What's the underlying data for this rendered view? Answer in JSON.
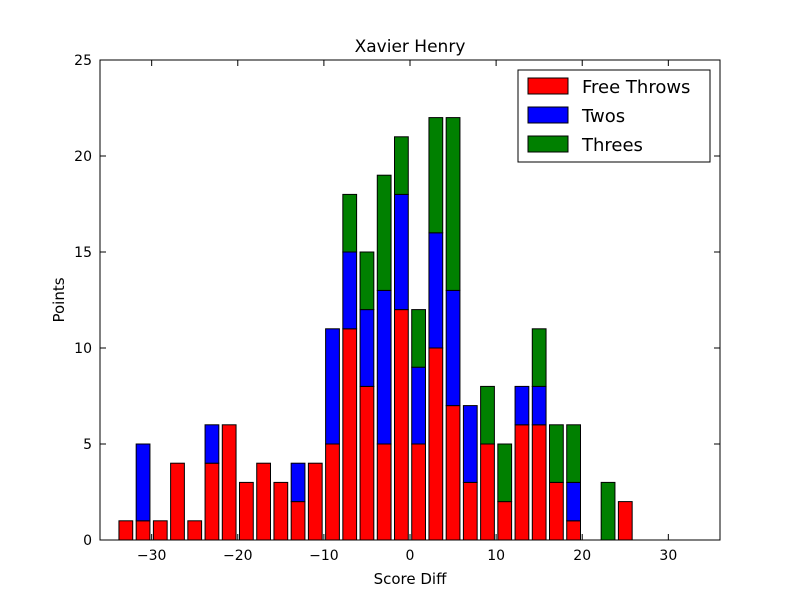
{
  "chart_data": {
    "type": "bar",
    "stacked": true,
    "title": "Xavier Henry",
    "xlabel": "Score Diff",
    "ylabel": "Points",
    "xlim": [
      -36,
      36
    ],
    "ylim": [
      0,
      25
    ],
    "xticks": [
      -30,
      -20,
      -10,
      0,
      10,
      20,
      30
    ],
    "yticks": [
      0,
      5,
      10,
      15,
      20,
      25
    ],
    "bar_width": 1.6,
    "legend_position": "top-right",
    "x": [
      -33,
      -31,
      -29,
      -27,
      -25,
      -23,
      -21,
      -19,
      -17,
      -15,
      -13,
      -11,
      -9,
      -7,
      -5,
      -3,
      -1,
      1,
      3,
      5,
      7,
      9,
      11,
      13,
      15,
      17,
      19,
      21,
      23,
      25,
      27,
      29,
      31,
      33,
      35
    ],
    "series": [
      {
        "name": "Free Throws",
        "color": "#ff0000",
        "values": [
          1,
          1,
          1,
          4,
          1,
          4,
          6,
          3,
          4,
          3,
          2,
          4,
          5,
          11,
          8,
          5,
          12,
          5,
          10,
          7,
          3,
          5,
          2,
          6,
          6,
          3,
          1,
          0,
          0,
          2,
          0,
          0,
          0,
          0,
          0
        ]
      },
      {
        "name": "Twos",
        "color": "#0000ff",
        "values": [
          0,
          4,
          0,
          0,
          0,
          2,
          0,
          0,
          0,
          0,
          2,
          0,
          6,
          4,
          4,
          8,
          6,
          4,
          6,
          6,
          4,
          0,
          0,
          2,
          2,
          0,
          2,
          0,
          0,
          0,
          0,
          0,
          0,
          0,
          0
        ]
      },
      {
        "name": "Threes",
        "color": "#008000",
        "values": [
          0,
          0,
          0,
          0,
          0,
          0,
          0,
          0,
          0,
          0,
          0,
          0,
          0,
          3,
          3,
          6,
          3,
          3,
          6,
          9,
          0,
          3,
          3,
          0,
          3,
          3,
          3,
          0,
          3,
          0,
          0,
          0,
          0,
          0,
          0
        ]
      }
    ]
  }
}
